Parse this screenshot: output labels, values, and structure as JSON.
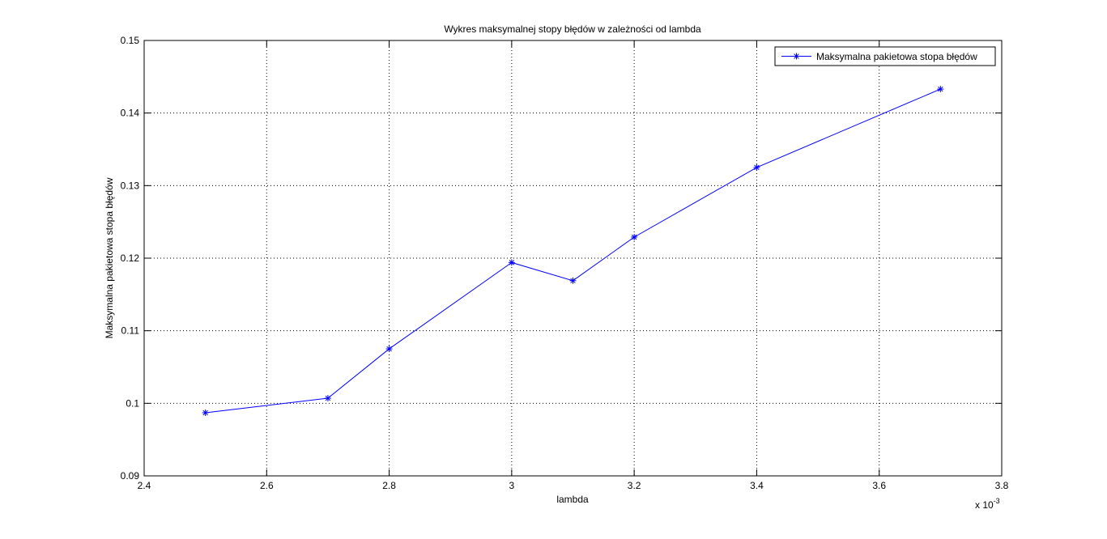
{
  "chart_data": {
    "type": "line",
    "title": "Wykres maksymalnej stopy błędów w zależności od lambda",
    "xlabel": "lambda",
    "ylabel": "Maksymalna pakietowa stopa błędów",
    "x_multiplier_label": "x 10",
    "x_multiplier_exponent": "-3",
    "xlim": [
      2.4,
      3.8
    ],
    "ylim": [
      0.09,
      0.15
    ],
    "x_ticks": [
      2.4,
      2.6,
      2.8,
      3.0,
      3.2,
      3.4,
      3.6,
      3.8
    ],
    "x_tick_labels": [
      "2.4",
      "2.6",
      "2.8",
      "3",
      "3.2",
      "3.4",
      "3.6",
      "3.8"
    ],
    "y_ticks": [
      0.09,
      0.1,
      0.11,
      0.12,
      0.13,
      0.14,
      0.15
    ],
    "y_tick_labels": [
      "0.09",
      "0.1",
      "0.11",
      "0.12",
      "0.13",
      "0.14",
      "0.15"
    ],
    "grid": true,
    "grid_style": "dotted",
    "legend_position": "top-right",
    "series": [
      {
        "name": "Maksymalna pakietowa stopa błędów",
        "color": "#0000ff",
        "marker": "asterisk",
        "x": [
          2.5,
          2.7,
          2.8,
          3.0,
          3.1,
          3.2,
          3.4,
          3.7
        ],
        "y": [
          0.0987,
          0.1007,
          0.1075,
          0.1194,
          0.1169,
          0.1229,
          0.1325,
          0.1433
        ]
      }
    ]
  }
}
